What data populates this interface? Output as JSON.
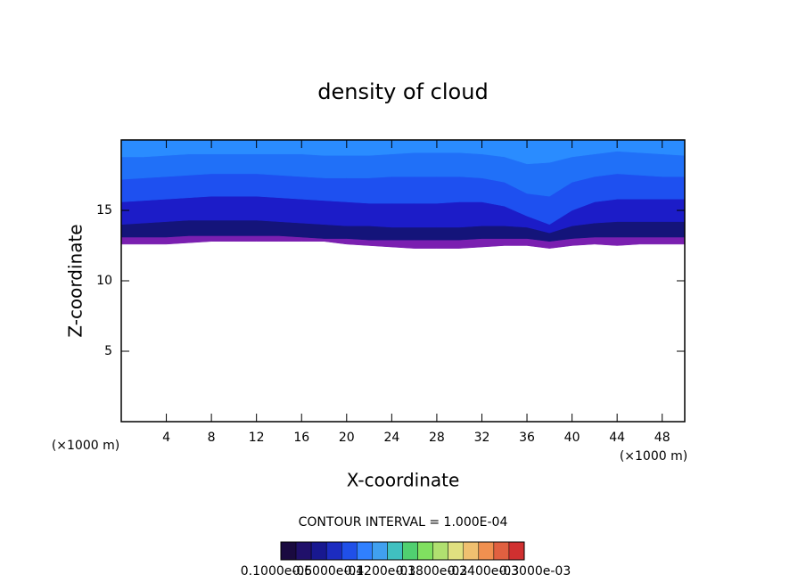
{
  "chart_data": {
    "type": "contour",
    "title": "density of cloud",
    "x_label": "X-coordinate",
    "y_label": "Z-coordinate",
    "x_unit": "(×1000 m)",
    "annotation": "CONTOUR INTERVAL = 1.000E-04",
    "xlim": [
      0,
      50
    ],
    "xticks": [
      4,
      8,
      12,
      16,
      20,
      24,
      28,
      32,
      36,
      40,
      44,
      48
    ],
    "ylim": [
      0,
      20
    ],
    "yticks": [
      5,
      10,
      15
    ],
    "x": [
      0,
      2,
      4,
      6,
      8,
      10,
      12,
      14,
      16,
      18,
      20,
      22,
      24,
      26,
      28,
      30,
      32,
      34,
      36,
      38,
      40,
      42,
      44,
      46,
      48,
      50
    ],
    "series": [
      {
        "color": "#7a1fb0",
        "values": [
          12.6,
          12.6,
          12.6,
          12.7,
          12.8,
          12.8,
          12.8,
          12.8,
          12.8,
          12.8,
          12.6,
          12.5,
          12.4,
          12.3,
          12.3,
          12.3,
          12.4,
          12.5,
          12.5,
          12.3,
          12.5,
          12.6,
          12.5,
          12.6,
          12.6,
          12.6
        ]
      },
      {
        "color": "#14147a",
        "values": [
          13.1,
          13.1,
          13.1,
          13.2,
          13.2,
          13.2,
          13.2,
          13.2,
          13.1,
          13.0,
          13.0,
          12.9,
          12.9,
          12.9,
          12.9,
          12.9,
          13.0,
          13.0,
          13.0,
          12.8,
          13.0,
          13.1,
          13.1,
          13.1,
          13.1,
          13.1
        ]
      },
      {
        "color": "#1c1cc8",
        "values": [
          14.0,
          14.1,
          14.2,
          14.3,
          14.3,
          14.3,
          14.3,
          14.2,
          14.1,
          14.0,
          13.9,
          13.9,
          13.8,
          13.8,
          13.8,
          13.8,
          13.9,
          13.9,
          13.8,
          13.4,
          13.9,
          14.1,
          14.2,
          14.2,
          14.2,
          14.2
        ]
      },
      {
        "color": "#1e50f0",
        "values": [
          15.6,
          15.7,
          15.8,
          15.9,
          16.0,
          16.0,
          16.0,
          15.9,
          15.8,
          15.7,
          15.6,
          15.5,
          15.5,
          15.5,
          15.5,
          15.6,
          15.6,
          15.3,
          14.6,
          14.0,
          15.0,
          15.6,
          15.8,
          15.8,
          15.8,
          15.8
        ]
      },
      {
        "color": "#2070f8",
        "values": [
          17.2,
          17.3,
          17.4,
          17.5,
          17.6,
          17.6,
          17.6,
          17.5,
          17.4,
          17.3,
          17.3,
          17.3,
          17.4,
          17.4,
          17.4,
          17.4,
          17.3,
          17.0,
          16.2,
          16.0,
          17.0,
          17.4,
          17.6,
          17.5,
          17.4,
          17.4
        ]
      },
      {
        "color": "#2a8cff",
        "values": [
          18.8,
          18.8,
          18.9,
          19.0,
          19.0,
          19.0,
          19.0,
          19.0,
          19.0,
          18.9,
          18.9,
          18.9,
          19.0,
          19.1,
          19.1,
          19.1,
          19.0,
          18.8,
          18.3,
          18.4,
          18.8,
          19.0,
          19.2,
          19.1,
          19.0,
          18.9
        ]
      }
    ],
    "colorbar": {
      "colors": [
        "#1a0a40",
        "#20106a",
        "#181890",
        "#1c2cc0",
        "#2050e8",
        "#3080ff",
        "#40a0f0",
        "#40c0c0",
        "#50d070",
        "#80e060",
        "#b0e070",
        "#e0e080",
        "#f0c070",
        "#f09050",
        "#e06040",
        "#d03030"
      ],
      "labels": [
        "0.1000e-05",
        "0.6000e-04",
        "0.1200e-03",
        "0.1800e-03",
        "0.2400e-03",
        "0.3000e-03"
      ]
    }
  }
}
